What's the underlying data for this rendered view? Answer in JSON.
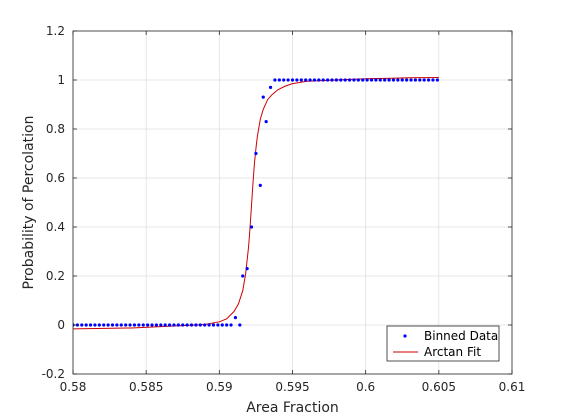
{
  "chart_data": {
    "type": "scatter",
    "xlabel": "Area Fraction",
    "ylabel": "Probability of Percolation",
    "xlim": [
      0.58,
      0.61
    ],
    "ylim": [
      -0.2,
      1.2
    ],
    "xticks": [
      "0.58",
      "0.585",
      "0.59",
      "0.595",
      "0.6",
      "0.605",
      "0.61"
    ],
    "yticks": [
      "-0.2",
      "0",
      "0.2",
      "0.4",
      "0.6",
      "0.8",
      "1",
      "1.2"
    ],
    "grid": true,
    "legend_position": "bottom-right",
    "series": [
      {
        "name": "Binned Data",
        "kind": "points",
        "color": "#0000ff",
        "x": [
          0.58,
          0.5803,
          0.5806,
          0.5809,
          0.5812,
          0.5815,
          0.5818,
          0.5821,
          0.5824,
          0.5827,
          0.583,
          0.5833,
          0.5836,
          0.5839,
          0.5842,
          0.5845,
          0.5848,
          0.5851,
          0.5854,
          0.5857,
          0.586,
          0.5863,
          0.5866,
          0.5869,
          0.5872,
          0.5875,
          0.5878,
          0.5881,
          0.5884,
          0.5887,
          0.589,
          0.5893,
          0.5896,
          0.5899,
          0.5902,
          0.5905,
          0.5908,
          0.5911,
          0.5914,
          0.5916,
          0.5919,
          0.5922,
          0.5925,
          0.5928,
          0.593,
          0.5932,
          0.5935,
          0.5938,
          0.5941,
          0.5944,
          0.5947,
          0.595,
          0.5953,
          0.5956,
          0.5959,
          0.5962,
          0.5965,
          0.5968,
          0.5971,
          0.5974,
          0.5977,
          0.598,
          0.5983,
          0.5986,
          0.5989,
          0.5992,
          0.5995,
          0.5998,
          0.6001,
          0.6004,
          0.6007,
          0.601,
          0.6013,
          0.6016,
          0.6019,
          0.6022,
          0.6025,
          0.6028,
          0.6031,
          0.6034,
          0.6037,
          0.604,
          0.6043,
          0.6046,
          0.6049
        ],
        "y": [
          0,
          0,
          0,
          0,
          0,
          0,
          0,
          0,
          0,
          0,
          0,
          0,
          0,
          0,
          0,
          0,
          0,
          0,
          0,
          0,
          0,
          0,
          0,
          0,
          0,
          0,
          0,
          0,
          0,
          0,
          0,
          0,
          0,
          0,
          0,
          0,
          0,
          0.03,
          0,
          0.2,
          0.23,
          0.4,
          0.7,
          0.57,
          0.93,
          0.83,
          0.97,
          1,
          1,
          1,
          1,
          1,
          1,
          1,
          1,
          1,
          1,
          1,
          1,
          1,
          1,
          1,
          1,
          1,
          1,
          1,
          1,
          1,
          1,
          1,
          1,
          1,
          1,
          1,
          1,
          1,
          1,
          1,
          1,
          1,
          1,
          1,
          1,
          1,
          1
        ]
      },
      {
        "name": "Arctan Fit",
        "kind": "line",
        "color": "#cc0000",
        "x": [
          0.58,
          0.584,
          0.588,
          0.589,
          0.59,
          0.5905,
          0.591,
          0.5913,
          0.5916,
          0.5918,
          0.592,
          0.5921,
          0.5922,
          0.5923,
          0.5924,
          0.5925,
          0.5926,
          0.5928,
          0.593,
          0.5933,
          0.5936,
          0.594,
          0.5945,
          0.595,
          0.596,
          0.598,
          0.6,
          0.603,
          0.605
        ],
        "y": [
          -0.016,
          -0.012,
          -0.001,
          0.002,
          0.013,
          0.025,
          0.055,
          0.085,
          0.14,
          0.21,
          0.32,
          0.4,
          0.49,
          0.58,
          0.66,
          0.72,
          0.77,
          0.84,
          0.88,
          0.92,
          0.94,
          0.96,
          0.975,
          0.985,
          0.995,
          1.0,
          1.005,
          1.009,
          1.01
        ]
      }
    ]
  }
}
